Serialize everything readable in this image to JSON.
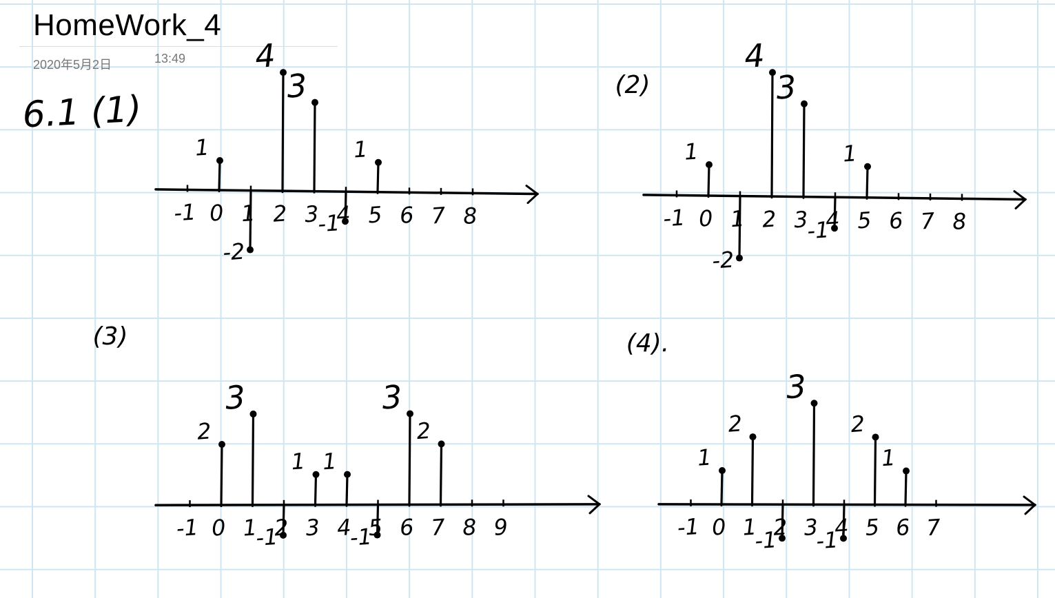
{
  "page": {
    "title": "HomeWork_4",
    "date": "2020年5月2日",
    "time": "13:49"
  },
  "problem_label": "6.1 (1)",
  "plots": [
    {
      "label": "",
      "ticks": [
        "-1",
        "0",
        "1",
        "2",
        "3",
        "4",
        "5",
        "6",
        "7",
        "8"
      ],
      "stems": [
        {
          "n": "0",
          "value": 1,
          "label": "1"
        },
        {
          "n": "1",
          "value": -2,
          "label": "-2"
        },
        {
          "n": "2",
          "value": 4,
          "label": "4"
        },
        {
          "n": "3",
          "value": 3,
          "label": "3"
        },
        {
          "n": "4",
          "value": -1,
          "label": "-1"
        },
        {
          "n": "5",
          "value": 1,
          "label": "1"
        }
      ]
    },
    {
      "label": "(2)",
      "ticks": [
        "-1",
        "0",
        "1",
        "2",
        "3",
        "4",
        "5",
        "6",
        "7",
        "8"
      ],
      "stems": [
        {
          "n": "0",
          "value": 1,
          "label": "1"
        },
        {
          "n": "1",
          "value": -2,
          "label": "-2"
        },
        {
          "n": "2",
          "value": 4,
          "label": "4"
        },
        {
          "n": "3",
          "value": 3,
          "label": "3"
        },
        {
          "n": "4",
          "value": -1,
          "label": "-1"
        },
        {
          "n": "5",
          "value": 1,
          "label": "1"
        }
      ]
    },
    {
      "label": "(3)",
      "ticks": [
        "-1",
        "0",
        "1",
        "2",
        "3",
        "4",
        "5",
        "6",
        "7",
        "8",
        "9"
      ],
      "stems": [
        {
          "n": "0",
          "value": 2,
          "label": "2"
        },
        {
          "n": "1",
          "value": 3,
          "label": "3"
        },
        {
          "n": "2",
          "value": -1,
          "label": "-1"
        },
        {
          "n": "3",
          "value": 1,
          "label": "1"
        },
        {
          "n": "4",
          "value": 1,
          "label": "1"
        },
        {
          "n": "5",
          "value": -1,
          "label": "-1"
        },
        {
          "n": "6",
          "value": 3,
          "label": "3"
        },
        {
          "n": "7",
          "value": 2,
          "label": "2"
        }
      ]
    },
    {
      "label": "(4).",
      "ticks": [
        "-1",
        "0",
        "1",
        "2",
        "3",
        "4",
        "5",
        "6",
        "7"
      ],
      "stems": [
        {
          "n": "0",
          "value": 1,
          "label": "1"
        },
        {
          "n": "1",
          "value": 2,
          "label": "2"
        },
        {
          "n": "2",
          "value": -1,
          "label": "-1"
        },
        {
          "n": "3",
          "value": 3,
          "label": "3"
        },
        {
          "n": "4",
          "value": -1,
          "label": "-1"
        },
        {
          "n": "5",
          "value": 2,
          "label": "2"
        },
        {
          "n": "6",
          "value": 1,
          "label": "1"
        }
      ]
    }
  ]
}
